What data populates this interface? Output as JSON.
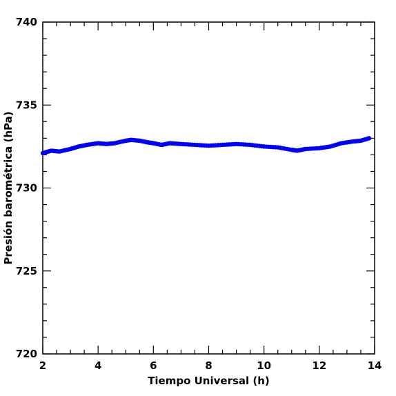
{
  "chart_data": {
    "type": "scatter",
    "xlabel": "Tiempo Universal (h)",
    "ylabel": "Presión barométrica (hPa)",
    "xlim": [
      2,
      14
    ],
    "ylim": [
      720,
      740
    ],
    "x_ticks": [
      "2",
      "4",
      "6",
      "8",
      "10",
      "12",
      "14"
    ],
    "y_ticks": [
      "720",
      "725",
      "730",
      "735",
      "740"
    ],
    "x_minor_step": 0.5,
    "y_minor_step": 1,
    "grid": false,
    "series": [
      {
        "color": "#0000ff",
        "x": [
          2.0,
          2.3,
          2.6,
          3.0,
          3.3,
          3.6,
          4.0,
          4.3,
          4.6,
          5.0,
          5.2,
          5.5,
          5.8,
          6.0,
          6.3,
          6.6,
          7.0,
          7.5,
          8.0,
          8.5,
          9.0,
          9.5,
          10.0,
          10.5,
          11.0,
          11.2,
          11.5,
          12.0,
          12.4,
          12.8,
          13.2,
          13.5,
          13.8
        ],
        "y": [
          732.1,
          732.25,
          732.2,
          732.35,
          732.5,
          732.6,
          732.7,
          732.65,
          732.7,
          732.85,
          732.9,
          732.85,
          732.75,
          732.7,
          732.6,
          732.7,
          732.65,
          732.6,
          732.55,
          732.6,
          732.65,
          732.6,
          732.5,
          732.45,
          732.3,
          732.25,
          732.35,
          732.4,
          732.5,
          732.7,
          732.8,
          732.85,
          733.0
        ]
      }
    ]
  }
}
